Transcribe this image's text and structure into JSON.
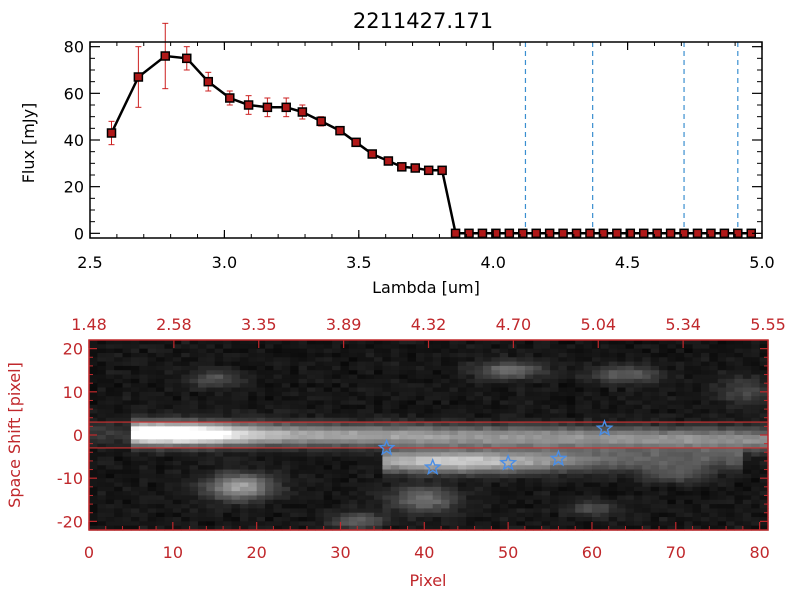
{
  "chart_data": [
    {
      "type": "line",
      "title": "2211427.171",
      "xlabel": "Lambda [um]",
      "ylabel": "Flux [mJy]",
      "xlim": [
        2.5,
        5.0
      ],
      "ylim": [
        -2,
        82
      ],
      "xticks": [
        "2.5",
        "3.0",
        "3.5",
        "4.0",
        "4.5",
        "5.0"
      ],
      "yticks": [
        "0",
        "20",
        "40",
        "60",
        "80"
      ],
      "colors": {
        "line": "#000000",
        "marker": "#b01818",
        "error": "#cc2020",
        "vline": "#3a8fd0",
        "zero": "#cc2020"
      },
      "grid": false,
      "vlines": [
        4.12,
        4.37,
        4.71,
        4.91
      ],
      "series": [
        {
          "x": [
            2.58,
            2.68,
            2.78,
            2.86,
            2.94,
            3.02,
            3.09,
            3.16,
            3.23,
            3.29,
            3.36,
            3.43,
            3.49,
            3.55,
            3.61,
            3.66,
            3.71,
            3.76,
            3.81,
            3.86,
            3.91,
            3.96,
            4.01,
            4.06,
            4.11,
            4.16,
            4.21,
            4.26,
            4.31,
            4.36,
            4.41,
            4.46,
            4.51,
            4.56,
            4.61,
            4.66,
            4.71,
            4.76,
            4.81,
            4.86,
            4.91,
            4.96
          ],
          "y": [
            43,
            67,
            76,
            75,
            65,
            58,
            55,
            54,
            54,
            52,
            48,
            44,
            39,
            34,
            31,
            28.5,
            28,
            27,
            27,
            0,
            0,
            0,
            0,
            0,
            0,
            0,
            0,
            0,
            0,
            0,
            0,
            0,
            0,
            0,
            0,
            0,
            0,
            0,
            0,
            0,
            0,
            0
          ],
          "err": [
            5,
            13,
            14,
            5,
            4,
            3,
            4,
            4,
            4,
            3,
            2,
            1,
            1,
            1,
            1,
            1,
            1,
            1,
            1,
            0,
            0,
            0,
            0,
            0,
            0,
            0,
            0,
            0,
            0,
            0,
            0,
            0,
            0,
            0,
            0,
            0,
            0,
            0,
            0,
            0,
            0,
            0
          ]
        }
      ]
    },
    {
      "type": "heatmap",
      "xlabel": "Pixel",
      "ylabel": "Space Shift [pixel]",
      "xlim": [
        0,
        81
      ],
      "ylim": [
        -22,
        22
      ],
      "xticks": [
        "0",
        "10",
        "20",
        "30",
        "40",
        "50",
        "60",
        "70",
        "80"
      ],
      "yticks": [
        "-20",
        "-10",
        "0",
        "10",
        "20"
      ],
      "top_axis_ticks": [
        "1.48",
        "2.58",
        "3.35",
        "3.89",
        "4.32",
        "4.70",
        "5.04",
        "5.34",
        "5.55"
      ],
      "colors": {
        "axis": "#c0282c",
        "star": "#4a8ee6",
        "band": "#d03030"
      },
      "band_lines": [
        3,
        -3
      ],
      "stars": [
        {
          "x": 35.5,
          "y": -3
        },
        {
          "x": 41,
          "y": -7.5
        },
        {
          "x": 50,
          "y": -6.5
        },
        {
          "x": 56,
          "y": -5.5
        },
        {
          "x": 61.5,
          "y": 1.5
        }
      ]
    }
  ]
}
